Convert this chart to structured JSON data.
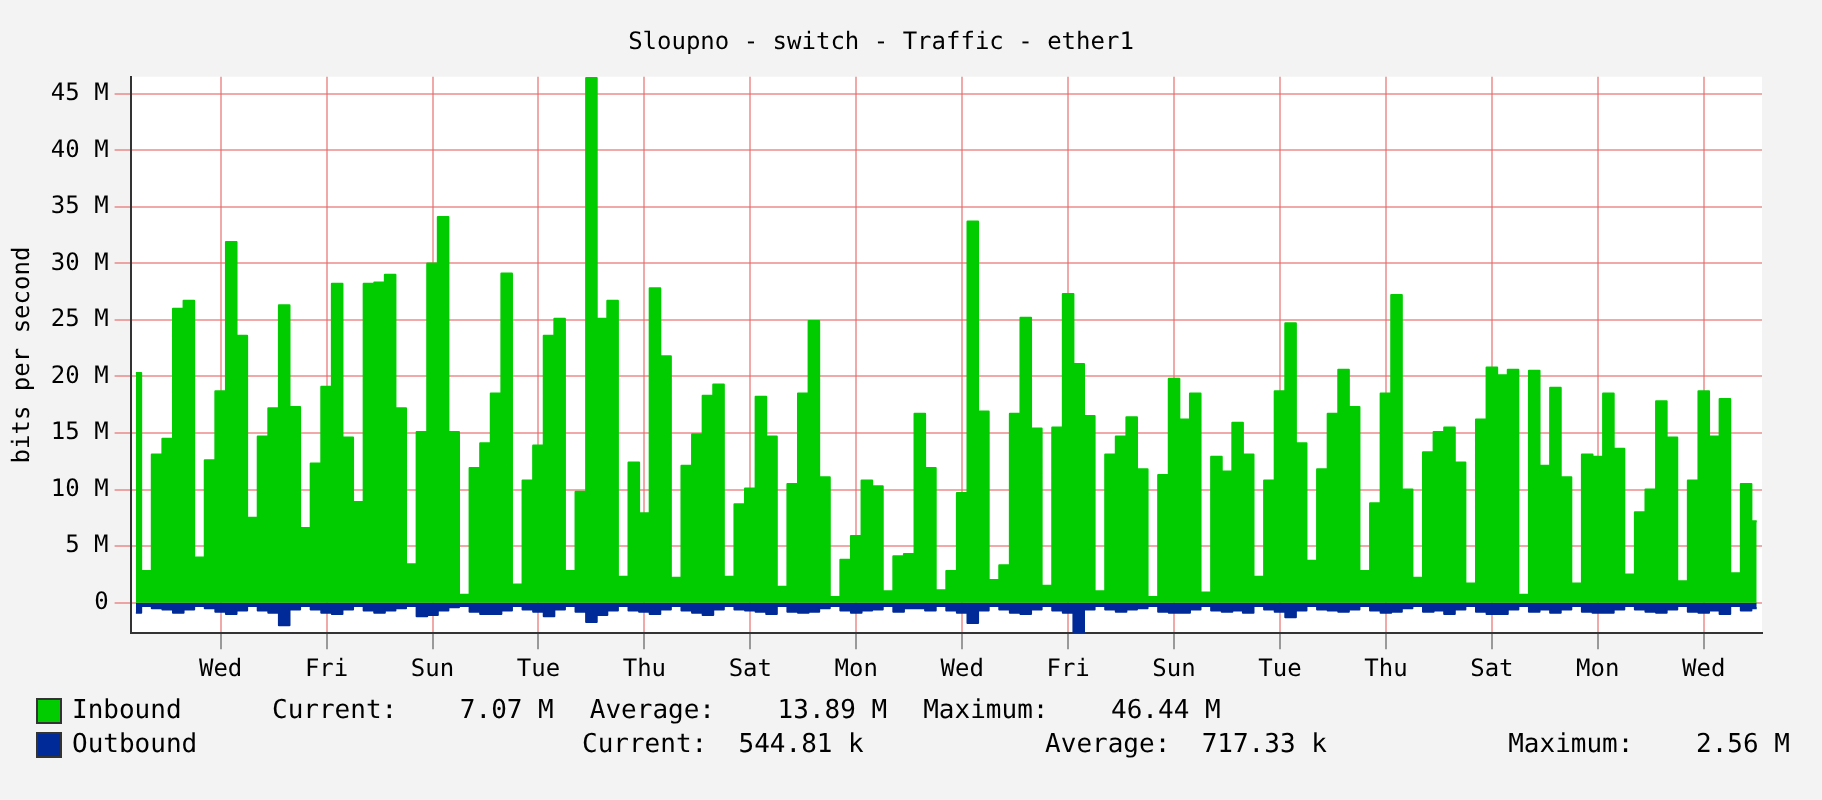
{
  "chart_data": {
    "type": "area",
    "title": "Sloupno - switch - Traffic - ether1",
    "ylabel": "bits per second",
    "categories": [
      null,
      null,
      null,
      null,
      null,
      null,
      null,
      null,
      "Wed",
      null,
      null,
      null,
      null,
      null,
      null,
      null,
      null,
      null,
      "Fri",
      null,
      null,
      null,
      null,
      null,
      null,
      null,
      null,
      null,
      "Sun",
      null,
      null,
      null,
      null,
      null,
      null,
      null,
      null,
      null,
      "Tue",
      null,
      null,
      null,
      null,
      null,
      null,
      null,
      null,
      null,
      "Thu",
      null,
      null,
      null,
      null,
      null,
      null,
      null,
      null,
      null,
      "Sat",
      null,
      null,
      null,
      null,
      null,
      null,
      null,
      null,
      null,
      "Mon",
      null,
      null,
      null,
      null,
      null,
      null,
      null,
      null,
      null,
      "Wed",
      null,
      null,
      null,
      null,
      null,
      null,
      null,
      null,
      null,
      "Fri",
      null,
      null,
      null,
      null,
      null,
      null,
      null,
      null,
      null,
      "Sun",
      null,
      null,
      null,
      null,
      null,
      null,
      null,
      null,
      null,
      "Tue",
      null,
      null,
      null,
      null,
      null,
      null,
      null,
      null,
      null,
      "Thu",
      null,
      null,
      null,
      null,
      null,
      null,
      null,
      null,
      null,
      "Sat",
      null,
      null,
      null,
      null,
      null,
      null,
      null,
      null,
      null,
      "Mon",
      null,
      null,
      null,
      null,
      null,
      null,
      null,
      null,
      null,
      "Wed",
      null,
      null,
      null,
      null,
      null
    ],
    "series": [
      {
        "name": "Inbound",
        "color": "#00cc00",
        "values": [
          20.3,
          2.8,
          13.1,
          14.5,
          26.0,
          26.7,
          4.0,
          12.6,
          18.7,
          31.9,
          23.6,
          7.5,
          14.7,
          17.2,
          26.3,
          17.3,
          6.6,
          12.3,
          19.1,
          28.2,
          14.6,
          8.9,
          28.2,
          28.3,
          29.0,
          17.2,
          3.4,
          15.1,
          30.0,
          34.1,
          15.1,
          0.7,
          11.9,
          14.1,
          18.5,
          29.1,
          1.6,
          10.8,
          13.9,
          23.6,
          25.1,
          2.8,
          9.8,
          46.4,
          25.1,
          26.7,
          2.3,
          12.4,
          7.9,
          27.8,
          21.8,
          2.2,
          12.1,
          14.9,
          18.3,
          19.3,
          2.3,
          8.7,
          10.1,
          18.2,
          14.7,
          1.4,
          10.5,
          18.5,
          24.9,
          11.1,
          0.5,
          3.8,
          5.9,
          10.8,
          10.3,
          1.0,
          4.1,
          4.3,
          16.7,
          11.9,
          1.1,
          2.8,
          9.7,
          33.7,
          16.9,
          2.0,
          3.3,
          16.7,
          25.2,
          15.4,
          1.5,
          15.5,
          27.3,
          21.1,
          16.5,
          1.0,
          13.1,
          14.7,
          16.4,
          11.8,
          0.5,
          11.3,
          19.8,
          16.2,
          18.5,
          0.9,
          12.9,
          11.6,
          15.9,
          13.1,
          2.3,
          10.8,
          18.7,
          24.7,
          14.1,
          3.7,
          11.8,
          16.7,
          20.6,
          17.3,
          2.8,
          8.8,
          18.5,
          27.2,
          10.0,
          2.2,
          13.3,
          15.1,
          15.5,
          12.4,
          1.7,
          16.2,
          20.8,
          20.1,
          20.6,
          0.7,
          20.5,
          12.1,
          19.0,
          11.1,
          1.7,
          13.1,
          12.9,
          18.5,
          13.6,
          2.5,
          8.0,
          10.0,
          17.8,
          14.6,
          1.9,
          10.8,
          18.7,
          14.7,
          18.0,
          2.6,
          10.5,
          7.2
        ]
      },
      {
        "name": "Outbound",
        "color": "#002a97",
        "values": [
          -0.9,
          -0.3,
          -0.5,
          -0.6,
          -0.9,
          -0.6,
          -0.3,
          -0.5,
          -0.8,
          -1.0,
          -0.7,
          -0.3,
          -0.7,
          -0.9,
          -2.0,
          -0.6,
          -0.3,
          -0.6,
          -0.9,
          -1.0,
          -0.6,
          -0.3,
          -0.7,
          -0.9,
          -0.7,
          -0.5,
          -0.3,
          -1.2,
          -1.1,
          -0.7,
          -0.4,
          -0.3,
          -0.8,
          -1.0,
          -1.0,
          -0.7,
          -0.3,
          -0.6,
          -0.8,
          -1.2,
          -0.6,
          -0.3,
          -0.8,
          -1.7,
          -1.1,
          -0.7,
          -0.3,
          -0.7,
          -0.8,
          -1.0,
          -0.6,
          -0.3,
          -0.7,
          -0.9,
          -1.1,
          -0.6,
          -0.3,
          -0.6,
          -0.7,
          -0.8,
          -1.0,
          -0.3,
          -0.8,
          -0.9,
          -0.8,
          -0.5,
          -0.3,
          -0.7,
          -0.9,
          -0.7,
          -0.6,
          -0.3,
          -0.8,
          -0.5,
          -0.5,
          -0.7,
          -0.3,
          -0.7,
          -0.9,
          -1.8,
          -0.7,
          -0.3,
          -0.6,
          -0.9,
          -1.0,
          -0.6,
          -0.3,
          -0.7,
          -0.9,
          -2.6,
          -0.6,
          -0.3,
          -0.6,
          -0.8,
          -0.6,
          -0.5,
          -0.3,
          -0.8,
          -0.9,
          -0.9,
          -0.6,
          -0.3,
          -0.7,
          -0.8,
          -0.7,
          -0.9,
          -0.3,
          -0.6,
          -0.8,
          -1.3,
          -0.7,
          -0.3,
          -0.6,
          -0.7,
          -0.8,
          -0.6,
          -0.3,
          -0.7,
          -0.9,
          -0.8,
          -0.5,
          -0.3,
          -0.8,
          -0.7,
          -1.0,
          -0.6,
          -0.3,
          -0.8,
          -1.0,
          -1.0,
          -0.6,
          -0.3,
          -0.8,
          -0.6,
          -0.9,
          -0.6,
          -0.3,
          -0.8,
          -0.9,
          -0.9,
          -0.6,
          -0.3,
          -0.6,
          -0.8,
          -0.9,
          -0.6,
          -0.3,
          -0.8,
          -0.9,
          -0.7,
          -1.0,
          -0.3,
          -0.7,
          -0.5
        ]
      }
    ],
    "ylim": [
      -2.7,
      46.5
    ],
    "yticks": [
      0,
      {
        "value": 5,
        "label": "5 M"
      },
      {
        "value": 10,
        "label": "10 M"
      },
      {
        "value": 15,
        "label": "15 M"
      },
      {
        "value": 20,
        "label": "20 M"
      },
      {
        "value": 25,
        "label": "25 M"
      },
      {
        "value": 30,
        "label": "30 M"
      },
      {
        "value": 35,
        "label": "35 M"
      },
      {
        "value": 40,
        "label": "40 M"
      },
      {
        "value": 45,
        "label": "45 M"
      }
    ],
    "grid": true,
    "legend": "bottom",
    "marker": "none",
    "line_style": "solid",
    "annotations": [
      "Current:    7.07 M",
      "Average:    13.89 M",
      "Maximum:    46.44 M",
      "Current:  544.81 k",
      "Average:  717.33 k",
      "Maximum:    2.56 M"
    ]
  }
}
